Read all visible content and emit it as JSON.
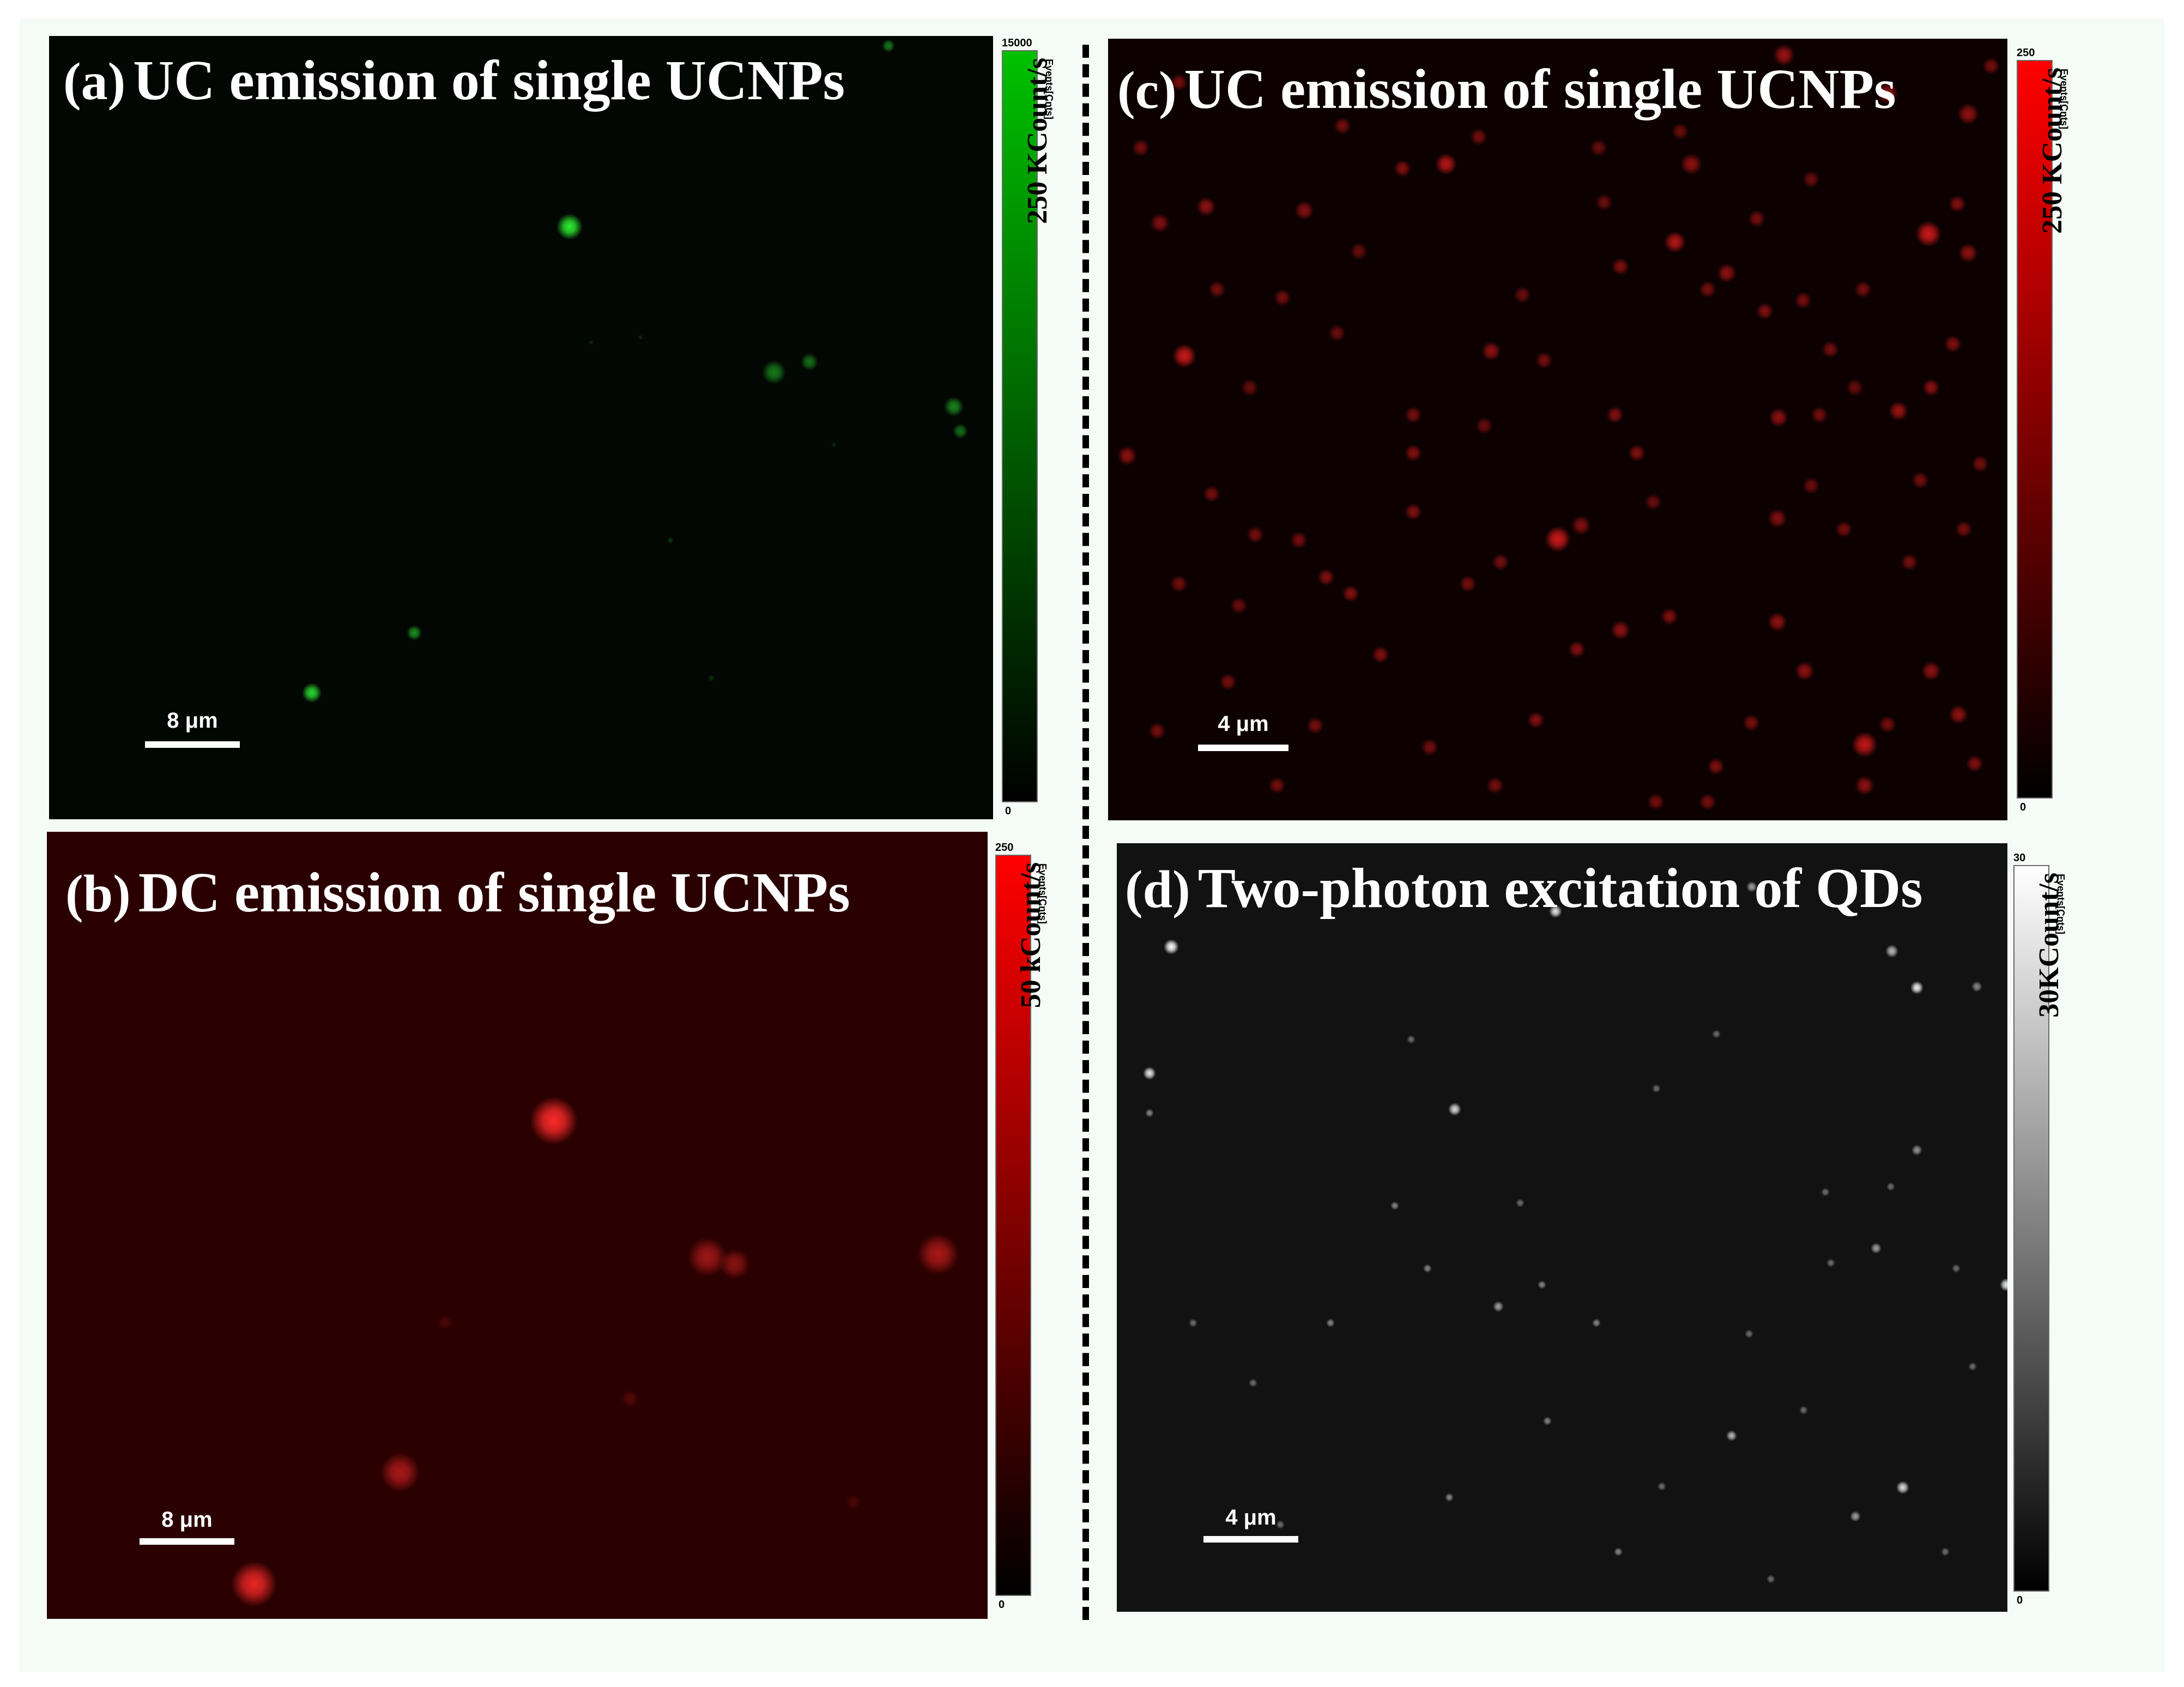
{
  "figure": {
    "panels": [
      {
        "id": "a",
        "label": "(a)",
        "title": "UC emission of single UCNPs",
        "scalebar_label": "8 μm",
        "colorbar": {
          "max": "15000",
          "min": "0",
          "units": "Events[Cnts]",
          "rate_label": "250 KCount/s",
          "color_top": "#00c000",
          "color_bottom": "#000000"
        },
        "background": "#030703",
        "spot_color": "#2cf032"
      },
      {
        "id": "b",
        "label": "(b)",
        "title": "DC emission of single UCNPs",
        "scalebar_label": "8 μm",
        "colorbar": {
          "max": "250",
          "min": "0",
          "units": "Events[Cnts]",
          "rate_label": "50 kCount/s",
          "color_top": "#ff0000",
          "color_bottom": "#000000"
        },
        "background": "#2a0000",
        "spot_color": "#ff2a2a"
      },
      {
        "id": "c",
        "label": "(c)",
        "title": "UC emission of single UCNPs",
        "scalebar_label": "4 μm",
        "colorbar": {
          "max": "250",
          "min": "0",
          "units": "Events[Cnts]",
          "rate_label": "250 KCount/s",
          "color_top": "#ff0000",
          "color_bottom": "#000000"
        },
        "background": "#0c0000",
        "spot_color": "#ff2020"
      },
      {
        "id": "d",
        "label": "(d)",
        "title": "Two-photon excitation of QDs",
        "scalebar_label": "4 μm",
        "colorbar": {
          "max": "30",
          "min": "0",
          "units": "Events[Cnts]",
          "rate_label": "30KCount/s",
          "color_top": "#ffffff",
          "color_bottom": "#000000"
        },
        "background": "#121212",
        "spot_color": "#ffffff"
      }
    ]
  }
}
